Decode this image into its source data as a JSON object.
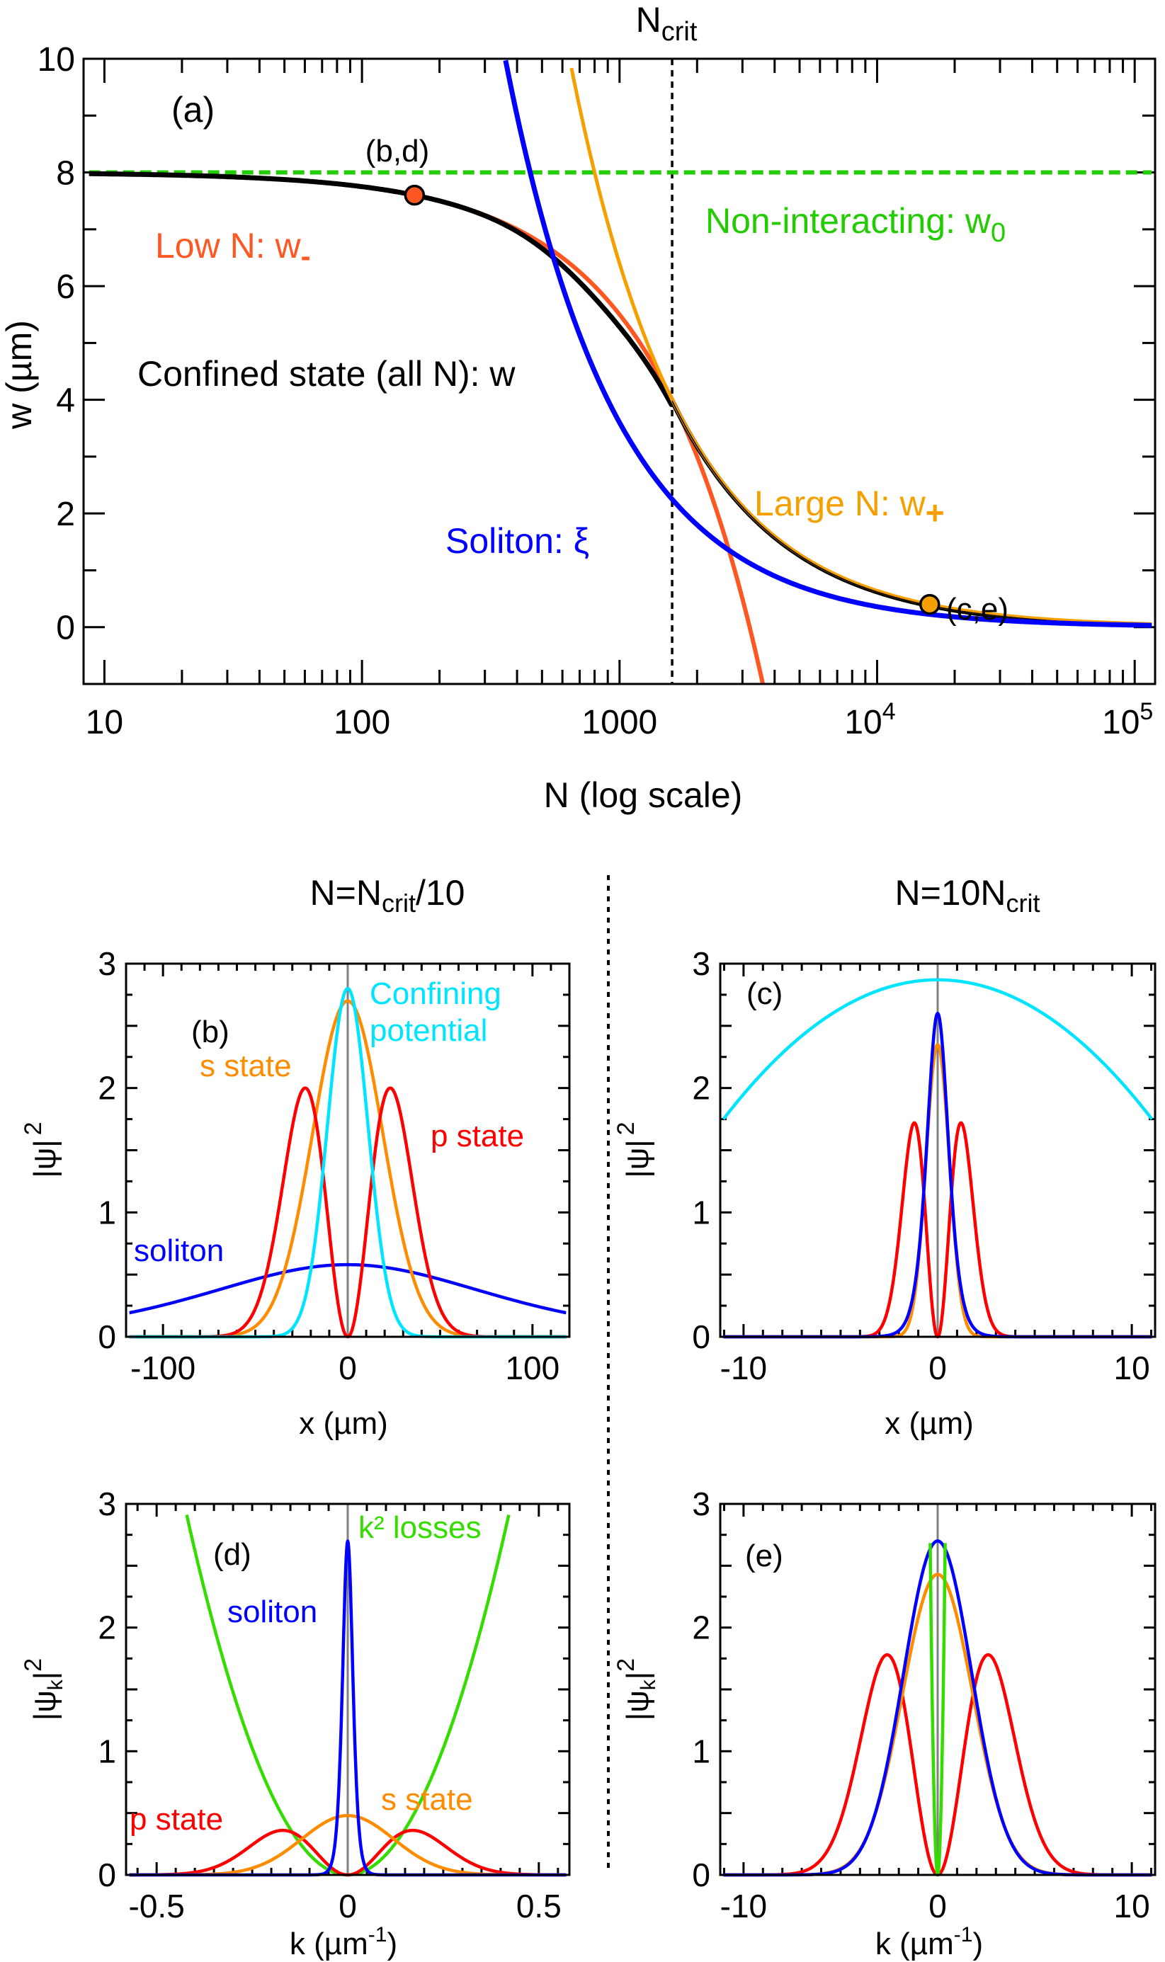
{
  "colors": {
    "low_n": "#ff5722",
    "large_n": "#f5a000",
    "confined": "#000000",
    "soliton": "#0000ff",
    "non_interacting": "#22cc00",
    "confining": "#00e5ff",
    "s_state": "#ff8c00",
    "p_state": "#ff0000",
    "k2_losses": "#33dd00",
    "zero_line": "#808080"
  },
  "titles": {
    "left_prefix": "N=N",
    "left_sub": "crit",
    "left_suffix": "/10",
    "right_prefix": "N=10N",
    "right_sub": "crit"
  },
  "chart_data": [
    {
      "panel": "(a)",
      "type": "line",
      "x_scale": "log",
      "xlim": [
        8.3,
        120000
      ],
      "ylim": [
        -1,
        10
      ],
      "xlabel": "N (log scale)",
      "ylabel": "w (µm)",
      "x_ticks": [
        {
          "v": 10,
          "base": "10",
          "exp": ""
        },
        {
          "v": 100,
          "base": "100",
          "exp": ""
        },
        {
          "v": 1000,
          "base": "1000",
          "exp": ""
        },
        {
          "v": 10000,
          "base": "10",
          "exp": "4"
        },
        {
          "v": 100000,
          "base": "10",
          "exp": "5"
        }
      ],
      "y_ticks": [
        0,
        2,
        4,
        6,
        8,
        10
      ],
      "ncrit": {
        "label": "N",
        "sub": "crit",
        "value": 1600
      },
      "series": [
        {
          "name": "Non-interacting: w0",
          "label": "Non-interacting: w",
          "sub": "0",
          "model": "constant",
          "value": 8,
          "style": "dashed"
        },
        {
          "name": "Low N: w-",
          "label": "Low N: w",
          "sub": "-",
          "model": "w0*(1-N/N0)",
          "w0": 8,
          "N0": 3200,
          "points": [
            [
              10,
              7.98
            ],
            [
              160,
              7.6
            ],
            [
              550,
              6.6
            ],
            [
              1600,
              4
            ],
            [
              3600,
              -1
            ]
          ]
        },
        {
          "name": "Large N: w+",
          "label": "Large N: w",
          "sub": "+",
          "model": "C/N",
          "C": 6400,
          "points": [
            [
              640,
              10
            ],
            [
              1600,
              4
            ],
            [
              16000,
              0.4
            ],
            [
              100000,
              0.064
            ]
          ]
        },
        {
          "name": "Soliton: ξ",
          "label": "Soliton: ξ",
          "model": "C/N",
          "C": 3600,
          "points": [
            [
              360,
              10
            ],
            [
              1600,
              2.25
            ],
            [
              16000,
              0.23
            ],
            [
              100000,
              0.036
            ]
          ]
        },
        {
          "name": "Confined state (all N): w",
          "label": "Confined state (all N): w",
          "model": "follows w- at low N, w+ at large N",
          "points": [
            [
              10,
              7.98
            ],
            [
              160,
              7.6
            ],
            [
              550,
              6.5
            ],
            [
              1000,
              5.4
            ],
            [
              1600,
              3.9
            ],
            [
              16000,
              0.4
            ],
            [
              100000,
              0.064
            ]
          ]
        }
      ],
      "markers": [
        {
          "label": "(b,d)",
          "N": 160,
          "w": 7.6,
          "color": "#ff5722"
        },
        {
          "label": "(c,e)",
          "N": 16000,
          "w": 0.4,
          "color": "#f5a000"
        }
      ]
    },
    {
      "panel": "(b)",
      "type": "line",
      "xlim": [
        -120,
        120
      ],
      "ylim": [
        0,
        3
      ],
      "x_ticks": [
        -100,
        0,
        100
      ],
      "y_ticks": [
        0,
        1,
        2,
        3
      ],
      "xlabel": "x (µm)",
      "ylabel": "|ψ|",
      "ylabel_sup": "2",
      "series": [
        {
          "name": "soliton",
          "label": "soliton",
          "shape": "sech2",
          "peak": 0.58,
          "width": 103,
          "color_key": "soliton"
        },
        {
          "name": "s state",
          "label": "s state",
          "shape": "gauss",
          "peak": 2.7,
          "sigma": 19,
          "color_key": "s_state"
        },
        {
          "name": "p state",
          "label": "p state",
          "shape": "pstate",
          "peak": 2.0,
          "peak_pos": 23,
          "color_key": "p_state"
        },
        {
          "name": "Confining potential",
          "label": "Confining",
          "label2": "potential",
          "shape": "gauss",
          "peak": 2.8,
          "sigma": 11,
          "color_key": "confining"
        }
      ]
    },
    {
      "panel": "(c)",
      "type": "line",
      "xlim": [
        -11.2,
        11.2
      ],
      "ylim": [
        0,
        3
      ],
      "x_ticks": [
        -10,
        0,
        10
      ],
      "y_ticks": [
        0,
        1,
        2,
        3
      ],
      "xlabel": "x (µm)",
      "ylabel": "|ψ|",
      "ylabel_sup": "2",
      "series": [
        {
          "shape": "parabola",
          "peak": 2.87,
          "curv": -0.0092,
          "color_key": "confining"
        },
        {
          "shape": "pstate",
          "peak": 1.72,
          "peak_pos": 1.2,
          "color_key": "p_state"
        },
        {
          "shape": "gauss",
          "peak": 2.35,
          "sigma": 0.6,
          "color_key": "s_state"
        },
        {
          "shape": "sech2",
          "peak": 2.6,
          "width": 0.75,
          "color_key": "soliton"
        }
      ]
    },
    {
      "panel": "(d)",
      "type": "line",
      "xlim": [
        -0.58,
        0.58
      ],
      "ylim": [
        0,
        3
      ],
      "x_ticks": [
        -0.5,
        0,
        0.5
      ],
      "y_ticks": [
        0,
        1,
        2,
        3
      ],
      "xlabel": "k (µm",
      "xlabel_sup": "-1",
      "xlabel_end": ")",
      "ylabel": "|ψ",
      "ylabel_sub": "k",
      "ylabel_end": "|",
      "ylabel_sup": "2",
      "series": [
        {
          "name": "k² losses",
          "label": "k² losses",
          "shape": "parabola",
          "peak": 0,
          "curv": 16.4,
          "color_key": "k2_losses"
        },
        {
          "name": "p state",
          "label": "p state",
          "shape": "pstate",
          "peak": 0.36,
          "peak_pos": 0.17,
          "color_key": "p_state"
        },
        {
          "name": "s state",
          "label": "s state",
          "shape": "gauss",
          "peak": 0.48,
          "sigma": 0.12,
          "color_key": "s_state"
        },
        {
          "name": "soliton",
          "label": "soliton",
          "shape": "sech2",
          "peak": 2.7,
          "width": 0.018,
          "color_key": "soliton"
        }
      ]
    },
    {
      "panel": "(e)",
      "type": "line",
      "xlim": [
        -11.2,
        11.2
      ],
      "ylim": [
        0,
        3
      ],
      "x_ticks": [
        -10,
        0,
        10
      ],
      "y_ticks": [
        0,
        1,
        2,
        3
      ],
      "xlabel": "k (µm",
      "xlabel_sup": "-1",
      "xlabel_end": ")",
      "ylabel": "|ψ",
      "ylabel_sub": "k",
      "ylabel_end": "|",
      "ylabel_sup": "2",
      "series": [
        {
          "shape": "pstate",
          "peak": 1.78,
          "peak_pos": 2.6,
          "color_key": "p_state"
        },
        {
          "shape": "gauss",
          "peak": 2.43,
          "sigma": 1.8,
          "color_key": "s_state"
        },
        {
          "shape": "gauss",
          "peak": 2.7,
          "sigma": 1.75,
          "color_key": "soliton"
        },
        {
          "shape": "parabola",
          "peak": 0,
          "curv": 18,
          "color_key": "k2_losses"
        }
      ]
    }
  ]
}
